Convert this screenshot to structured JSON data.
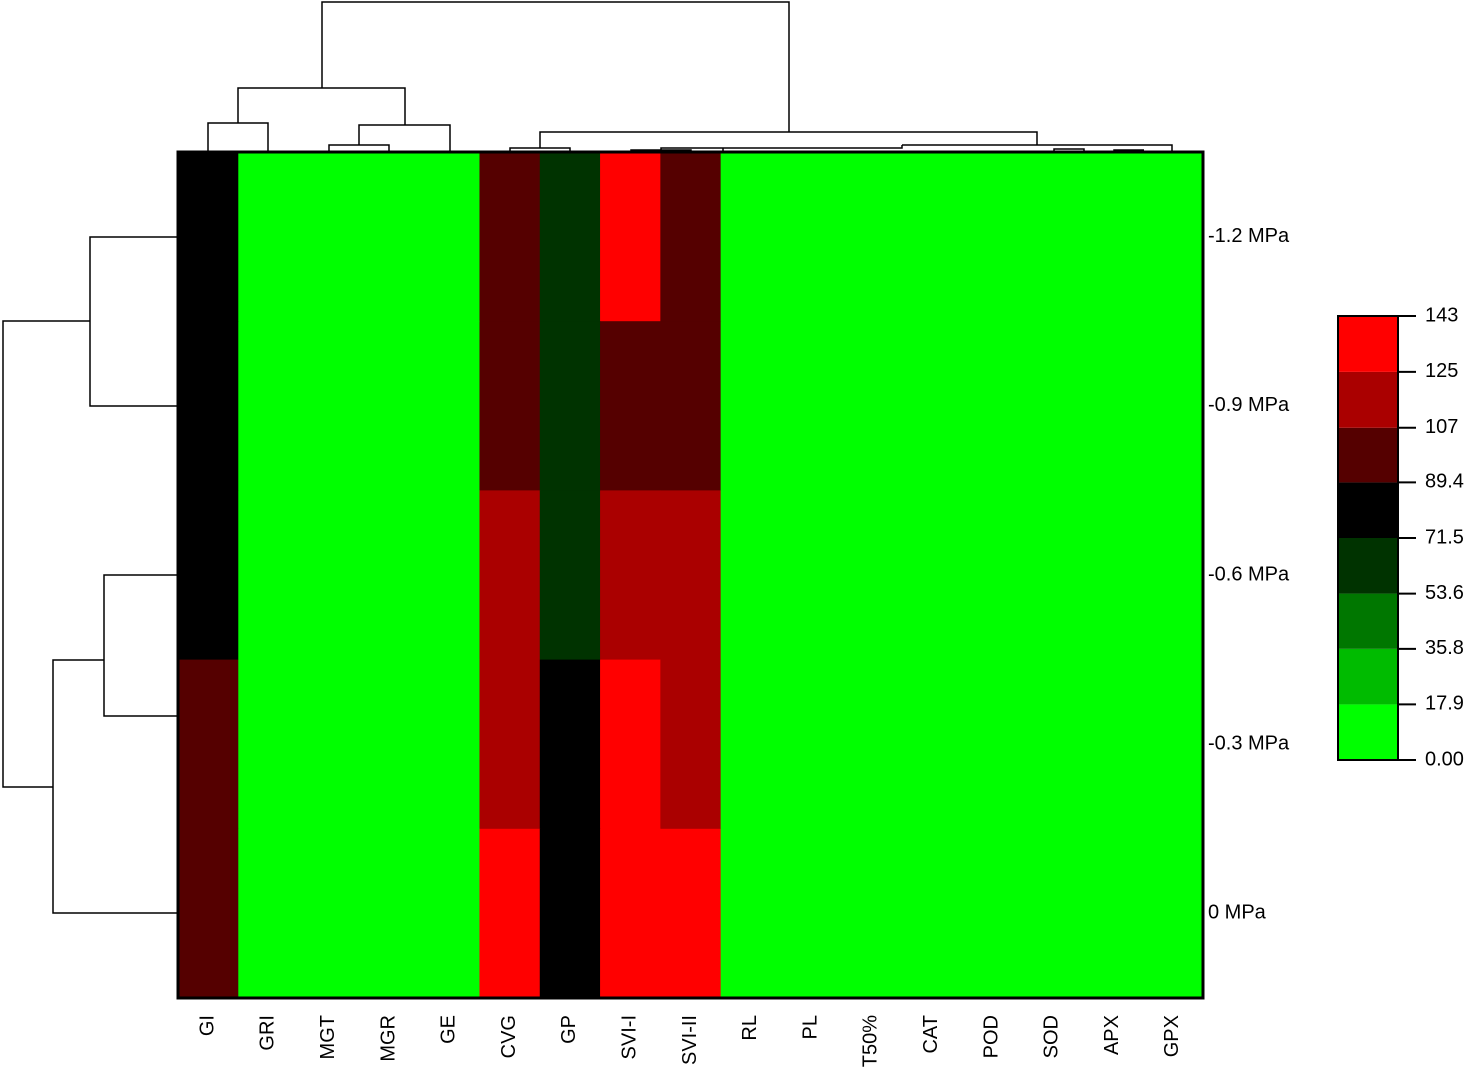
{
  "chart_data": {
    "type": "heatmap",
    "columns": [
      "GI",
      "GRI",
      "MGT",
      "MGR",
      "GE",
      "CVG",
      "GP",
      "SVI-I",
      "SVI-II",
      "RL",
      "PL",
      "T50%",
      "CAT",
      "POD",
      "SOD",
      "APX",
      "GPX"
    ],
    "rows": [
      "-1.2 MPa",
      "-0.9 MPa",
      "-0.6 MPa",
      "-0.3 MPa",
      "0 MPa"
    ],
    "values": [
      [
        80,
        1,
        1,
        1,
        1,
        98,
        62,
        134,
        98,
        1,
        1,
        1,
        1,
        1,
        1,
        1,
        1
      ],
      [
        80,
        1,
        1,
        1,
        1,
        98,
        62,
        98,
        98,
        1,
        1,
        1,
        1,
        1,
        1,
        1,
        1
      ],
      [
        80,
        1,
        1,
        1,
        1,
        116,
        62,
        116,
        116,
        1,
        1,
        1,
        1,
        1,
        1,
        1,
        1
      ],
      [
        98,
        1,
        1,
        1,
        1,
        116,
        80,
        134,
        116,
        1,
        1,
        1,
        1,
        1,
        1,
        1,
        1
      ],
      [
        98,
        1,
        1,
        1,
        1,
        134,
        80,
        134,
        134,
        1,
        1,
        1,
        1,
        1,
        1,
        1,
        1
      ]
    ],
    "colorbar_ticks": [
      {
        "value": 0,
        "label": "0.00"
      },
      17.9,
      35.8,
      53.6,
      71.5,
      89.4,
      107,
      125,
      143
    ],
    "colors": [
      "#00ff00",
      "#00bb00",
      "#007700",
      "#003300",
      "#000000",
      "#550000",
      "#aa0000",
      "#ff0000"
    ]
  }
}
